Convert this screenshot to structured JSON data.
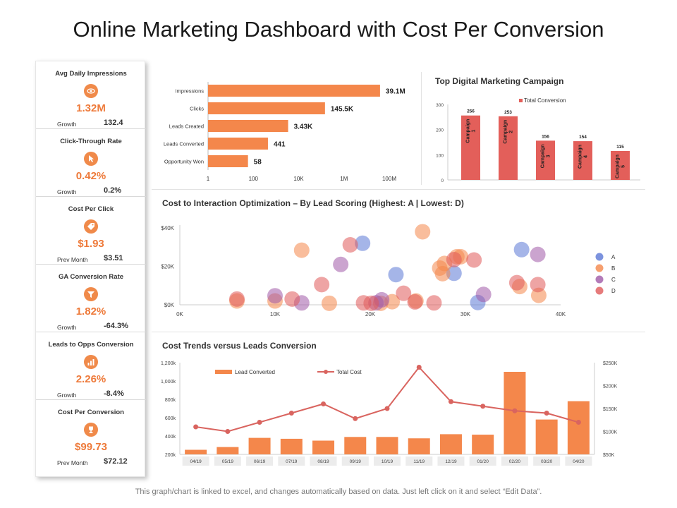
{
  "page": {
    "title": "Online Marketing Dashboard with Cost Per Conversion",
    "footnote": "This graph/chart is linked to excel, and changes automatically based on data. Just left click on it and select “Edit Data”."
  },
  "colors": {
    "accent": "#f08a4a",
    "bar": "#f4874b",
    "campaign_bar": "#e35f5a",
    "line": "#d9645f"
  },
  "kpis": [
    {
      "label": "Avg Daily Impressions",
      "icon": "eye-icon",
      "value": "1.32M",
      "sublabel": "Growth",
      "subvalue": "132.4"
    },
    {
      "label": "Click-Through Rate",
      "icon": "cursor-icon",
      "value": "0.42%",
      "sublabel": "Growth",
      "subvalue": "0.2%"
    },
    {
      "label": "Cost Per Click",
      "icon": "tag-icon",
      "value": "$1.93",
      "sublabel": "Prev Month",
      "subvalue": "$3.51"
    },
    {
      "label": "GA Conversion Rate",
      "icon": "funnel-icon",
      "value": "1.82%",
      "sublabel": "Growth",
      "subvalue": "-64.3%"
    },
    {
      "label": "Leads to Opps Conversion",
      "icon": "chart-icon",
      "value": "2.26%",
      "sublabel": "Growth",
      "subvalue": "-8.4%"
    },
    {
      "label": "Cost Per Conversion",
      "icon": "trophy-icon",
      "value": "$99.73",
      "sublabel": "Prev Month",
      "subvalue": "$72.12"
    }
  ],
  "chart_data": [
    {
      "id": "funnel",
      "type": "bar",
      "orientation": "horizontal",
      "scale": "log",
      "categories": [
        "Impressions",
        "Clicks",
        "Leads Created",
        "Leads Converted",
        "Opportunity Won"
      ],
      "values": [
        39100000,
        145500,
        3430,
        441,
        58
      ],
      "data_labels": [
        "39.1M",
        "145.5K",
        "3.43K",
        "441",
        "58"
      ],
      "xticks": [
        "1",
        "100",
        "10K",
        "1M",
        "100M"
      ],
      "xtick_values": [
        1,
        100,
        10000,
        1000000,
        100000000
      ]
    },
    {
      "id": "campaign",
      "type": "bar",
      "title": "Top Digital Marketing Campaign",
      "legend": "Total Conversion",
      "categories": [
        "Campaign 1",
        "Campaign 2",
        "Campaign 3",
        "Campaign 4",
        "Campaign 5"
      ],
      "values": [
        256,
        253,
        156,
        154,
        115
      ],
      "ylim": [
        0,
        300
      ],
      "yticks": [
        "0",
        "100",
        "200",
        "300"
      ],
      "ytick_values": [
        0,
        100,
        200,
        300
      ]
    },
    {
      "id": "scatter",
      "type": "scatter",
      "title": "Cost to Interaction Optimization – By Lead Scoring (Highest: A | Lowest: D)",
      "xlim": [
        0,
        40000
      ],
      "ylim": [
        0,
        40000
      ],
      "xticks": [
        "0K",
        "10K",
        "20K",
        "30K",
        "40K"
      ],
      "xtick_values": [
        0,
        10000,
        20000,
        30000,
        40000
      ],
      "yticks": [
        "$0K",
        "$20K",
        "$40K"
      ],
      "ytick_values": [
        0,
        20000,
        40000
      ],
      "series": [
        {
          "name": "A",
          "color": "#5b78d6",
          "points": [
            [
              19200,
              32000
            ],
            [
              22700,
              15700
            ],
            [
              28800,
              16400
            ],
            [
              31300,
              1200
            ],
            [
              35900,
              28700
            ]
          ]
        },
        {
          "name": "B",
          "color": "#f4874b",
          "points": [
            [
              6000,
              2000
            ],
            [
              10000,
              2000
            ],
            [
              12800,
              28400
            ],
            [
              15700,
              800
            ],
            [
              21100,
              800
            ],
            [
              22300,
              1600
            ],
            [
              24800,
              2000
            ],
            [
              25500,
              38000
            ],
            [
              27300,
              19100
            ],
            [
              27600,
              16200
            ],
            [
              27800,
              21500
            ],
            [
              29100,
              25000
            ],
            [
              29500,
              25000
            ],
            [
              35700,
              9500
            ],
            [
              37700,
              4900
            ]
          ]
        },
        {
          "name": "C",
          "color": "#a05aa8",
          "points": [
            [
              10000,
              4700
            ],
            [
              12800,
              1000
            ],
            [
              16900,
              21000
            ],
            [
              20600,
              1000
            ],
            [
              21200,
              2600
            ],
            [
              31900,
              5400
            ],
            [
              37600,
              26200
            ]
          ]
        },
        {
          "name": "D",
          "color": "#e05a5a",
          "points": [
            [
              6000,
              3000
            ],
            [
              11800,
              3000
            ],
            [
              14900,
              10500
            ],
            [
              17900,
              31200
            ],
            [
              19300,
              1000
            ],
            [
              20100,
              800
            ],
            [
              23500,
              6000
            ],
            [
              24700,
              1500
            ],
            [
              26700,
              1000
            ],
            [
              28800,
              23500
            ],
            [
              30900,
              23300
            ],
            [
              35400,
              11500
            ],
            [
              37600,
              10500
            ]
          ]
        }
      ]
    },
    {
      "id": "trends",
      "type": "bar+line",
      "title": "Cost Trends versus Leads Conversion",
      "categories": [
        "04/19",
        "05/19",
        "06/19",
        "07/19",
        "08/19",
        "09/19",
        "10/19",
        "11/19",
        "12/19",
        "01/20",
        "02/20",
        "03/20",
        "04/20"
      ],
      "series": [
        {
          "name": "Lead Converted",
          "type": "bar",
          "axis": "left",
          "values": [
            250,
            280,
            380,
            370,
            350,
            390,
            390,
            375,
            420,
            415,
            1100,
            580,
            780
          ]
        },
        {
          "name": "Total Cost",
          "type": "line",
          "axis": "right",
          "values": [
            110000,
            100000,
            120000,
            140000,
            160000,
            128000,
            150000,
            240000,
            165000,
            155000,
            145000,
            140000,
            120000
          ]
        }
      ],
      "ylim_left": [
        200,
        1200
      ],
      "yticks_left": [
        "200k",
        "400k",
        "600k",
        "800k",
        "1,000k",
        "1,200k"
      ],
      "ytick_values_left": [
        200,
        400,
        600,
        800,
        1000,
        1200
      ],
      "ylim_right": [
        50000,
        250000
      ],
      "yticks_right": [
        "$50K",
        "$100K",
        "$150K",
        "$200K",
        "$250K"
      ],
      "ytick_values_right": [
        50000,
        100000,
        150000,
        200000,
        250000
      ]
    }
  ]
}
